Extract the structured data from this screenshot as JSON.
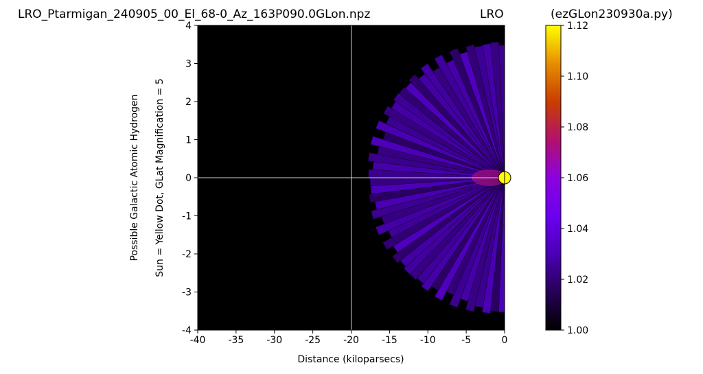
{
  "header": {
    "left_title": "LRO_Ptarmigan_240905_00_El_68-0_Az_163P090.0GLon.npz",
    "center_title": "LRO",
    "right_title": "(ezGLon230930a.py)"
  },
  "chart_data": {
    "type": "heatmap",
    "title": "LRO_Ptarmigan_240905_00_El_68-0_Az_163P090.0GLon.npz",
    "xlabel": "Distance (kiloparsecs)",
    "ylabel_line1": "Possible Galactic Atomic Hydrogen",
    "ylabel_line2": "Sun = Yellow Dot, GLat Magnification = 5",
    "xlim": [
      -40,
      0
    ],
    "ylim": [
      -4,
      4
    ],
    "x_ticks": [
      "-40",
      "-35",
      "-30",
      "-25",
      "-20",
      "-15",
      "-10",
      "-5",
      "0"
    ],
    "y_ticks": [
      "-4",
      "-3",
      "-2",
      "-1",
      "0",
      "1",
      "2",
      "3",
      "4"
    ],
    "crosshair": {
      "x": -20,
      "y": 0
    },
    "sun_marker": {
      "x": 0,
      "y": 0,
      "color": "#ffff00"
    },
    "fan": {
      "apex": [
        0,
        0
      ],
      "start_angle_deg": 75,
      "end_angle_deg": 285,
      "spokes": 60,
      "outer_radius_kpc": 18,
      "typical_value": 1.025
    },
    "colorbar": {
      "colormap": "gnuplot",
      "min": 1.0,
      "max": 1.12,
      "ticks": [
        "1.00",
        "1.02",
        "1.04",
        "1.06",
        "1.08",
        "1.10",
        "1.12"
      ]
    },
    "background_color": "#000000"
  }
}
